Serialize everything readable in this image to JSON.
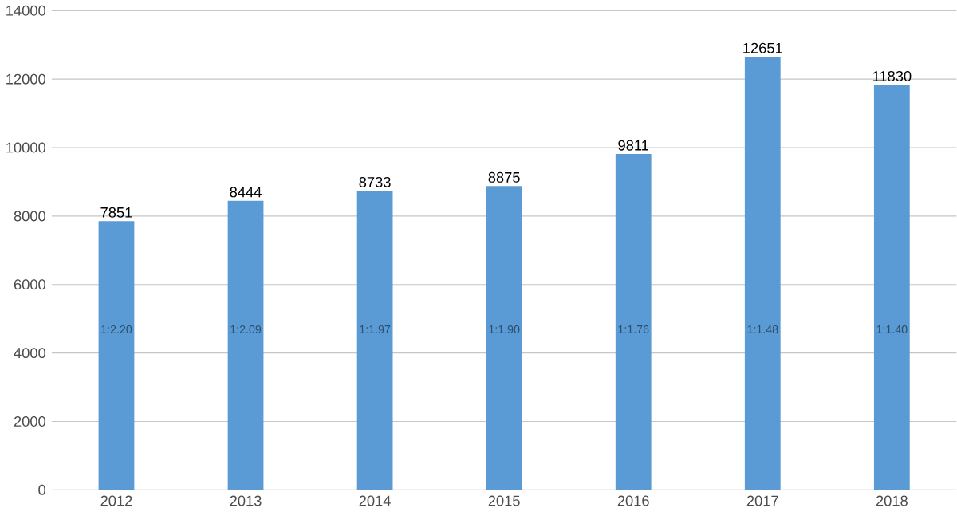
{
  "chart_data": {
    "type": "bar",
    "categories": [
      "2012",
      "2013",
      "2014",
      "2015",
      "2016",
      "2017",
      "2018"
    ],
    "values": [
      7851,
      8444,
      8733,
      8875,
      9811,
      12651,
      11830
    ],
    "color": "#5b9bd5",
    "data_labels": true,
    "grid": "y",
    "ylim": [
      0,
      14000
    ],
    "yticks": [
      0,
      2000,
      4000,
      6000,
      8000,
      10000,
      12000,
      14000
    ],
    "annotations": [
      "1:2.20",
      "1:2.09",
      "1:1.97",
      "1:1.90",
      "1:1.76",
      "1:1.48",
      "1:1.40"
    ]
  }
}
